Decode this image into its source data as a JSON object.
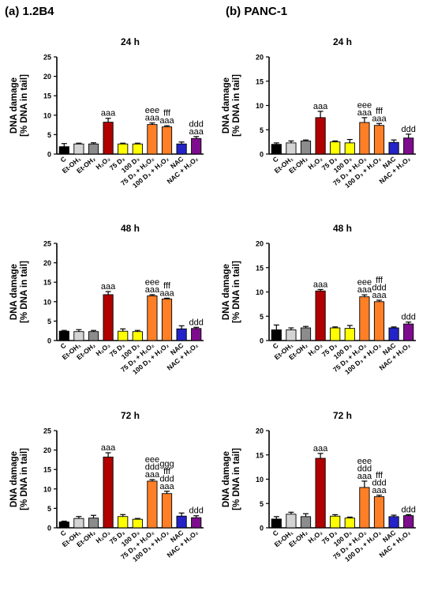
{
  "panels": {
    "a": {
      "label": "(a) 1.2B4"
    },
    "b": {
      "label": "(b) PANC-1"
    }
  },
  "categories": [
    "C",
    "Et-OH₁",
    "Et-OH₂",
    "H₂O₂",
    "75 D₃",
    "100 D₃",
    "75 D₃ + H₂O₂",
    "100 D₃ + H₂O₂",
    "NAC",
    "NAC + H₂O₂"
  ],
  "bar_colors": [
    "#000000",
    "#d4d4d4",
    "#8c8c8c",
    "#b00000",
    "#ffff00",
    "#ffff00",
    "#ff7f27",
    "#ff7f27",
    "#2323c8",
    "#7d0d8c"
  ],
  "ylabel_line1": "DNA damage",
  "ylabel_line2": "[% DNA in tail]",
  "chart_data": [
    {
      "type": "bar",
      "panel": "a",
      "title": "24 h",
      "ylim": [
        0,
        25
      ],
      "yticks": [
        0,
        5,
        10,
        15,
        20,
        25
      ],
      "values": [
        1.9,
        2.6,
        2.6,
        8.2,
        2.6,
        2.6,
        7.6,
        7.0,
        2.6,
        4.0
      ],
      "errors": [
        0.8,
        0.2,
        0.3,
        1.0,
        0.2,
        0.2,
        0.4,
        0.3,
        0.5,
        0.5
      ],
      "annotations": [
        "",
        "",
        "",
        "aaa",
        "",
        "",
        "eee\naaa",
        "fff\naaa",
        "",
        "ddd\naaa"
      ]
    },
    {
      "type": "bar",
      "panel": "b",
      "title": "24 h",
      "ylim": [
        0,
        20
      ],
      "yticks": [
        0,
        5,
        10,
        15,
        20
      ],
      "values": [
        2.0,
        2.3,
        2.7,
        7.5,
        2.5,
        2.3,
        6.5,
        5.9,
        2.4,
        3.3
      ],
      "errors": [
        0.3,
        0.4,
        0.2,
        1.3,
        0.2,
        0.7,
        1.0,
        0.4,
        0.5,
        0.8
      ],
      "annotations": [
        "",
        "",
        "",
        "aaa",
        "",
        "",
        "eee\naaa",
        "fff\naaa",
        "",
        "ddd"
      ]
    },
    {
      "type": "bar",
      "panel": "a",
      "title": "48 h",
      "ylim": [
        0,
        25
      ],
      "yticks": [
        0,
        5,
        10,
        15,
        20,
        25
      ],
      "values": [
        2.4,
        2.3,
        2.3,
        11.8,
        2.4,
        2.3,
        11.5,
        10.7,
        3.0,
        3.1
      ],
      "errors": [
        0.2,
        0.5,
        0.3,
        0.8,
        0.6,
        0.3,
        0.3,
        0.2,
        0.8,
        0.3
      ],
      "annotations": [
        "",
        "",
        "",
        "aaa",
        "",
        "",
        "eee\naaa",
        "fff\naaa",
        "",
        "ddd"
      ]
    },
    {
      "type": "bar",
      "panel": "b",
      "title": "48 h",
      "ylim": [
        0,
        20
      ],
      "yticks": [
        0,
        5,
        10,
        15,
        20
      ],
      "values": [
        2.2,
        2.2,
        2.6,
        10.2,
        2.6,
        2.5,
        9.0,
        8.0,
        2.6,
        3.4
      ],
      "errors": [
        1.0,
        0.4,
        0.3,
        0.3,
        0.2,
        0.6,
        0.4,
        0.3,
        0.2,
        0.4
      ],
      "annotations": [
        "",
        "",
        "",
        "aaa",
        "",
        "",
        "eee\naaa",
        "fff\nddd\naaa",
        "",
        "ddd"
      ]
    },
    {
      "type": "bar",
      "panel": "a",
      "title": "72 h",
      "ylim": [
        0,
        25
      ],
      "yticks": [
        0,
        5,
        10,
        15,
        20,
        25
      ],
      "values": [
        1.5,
        2.4,
        2.5,
        18.2,
        2.9,
        2.2,
        12.0,
        8.8,
        3.0,
        2.6
      ],
      "errors": [
        0.2,
        0.5,
        0.7,
        1.1,
        0.5,
        0.2,
        0.4,
        0.6,
        0.8,
        0.5
      ],
      "annotations": [
        "",
        "",
        "",
        "aaa",
        "",
        "",
        "eee\nddd\naaa",
        "ggg\nfff\nddd\naaa",
        "",
        "ddd"
      ]
    },
    {
      "type": "bar",
      "panel": "b",
      "title": "72 h",
      "ylim": [
        0,
        20
      ],
      "yticks": [
        0,
        5,
        10,
        15,
        20
      ],
      "values": [
        1.8,
        2.8,
        2.3,
        14.3,
        2.4,
        2.0,
        8.3,
        6.4,
        2.3,
        2.5
      ],
      "errors": [
        0.5,
        0.4,
        0.6,
        1.0,
        0.3,
        0.2,
        1.3,
        0.3,
        0.3,
        0.2
      ],
      "annotations": [
        "",
        "",
        "",
        "aaa",
        "",
        "",
        "eee\nddd\naaa",
        "fff\nddd\naaa",
        "",
        "ddd"
      ]
    }
  ]
}
